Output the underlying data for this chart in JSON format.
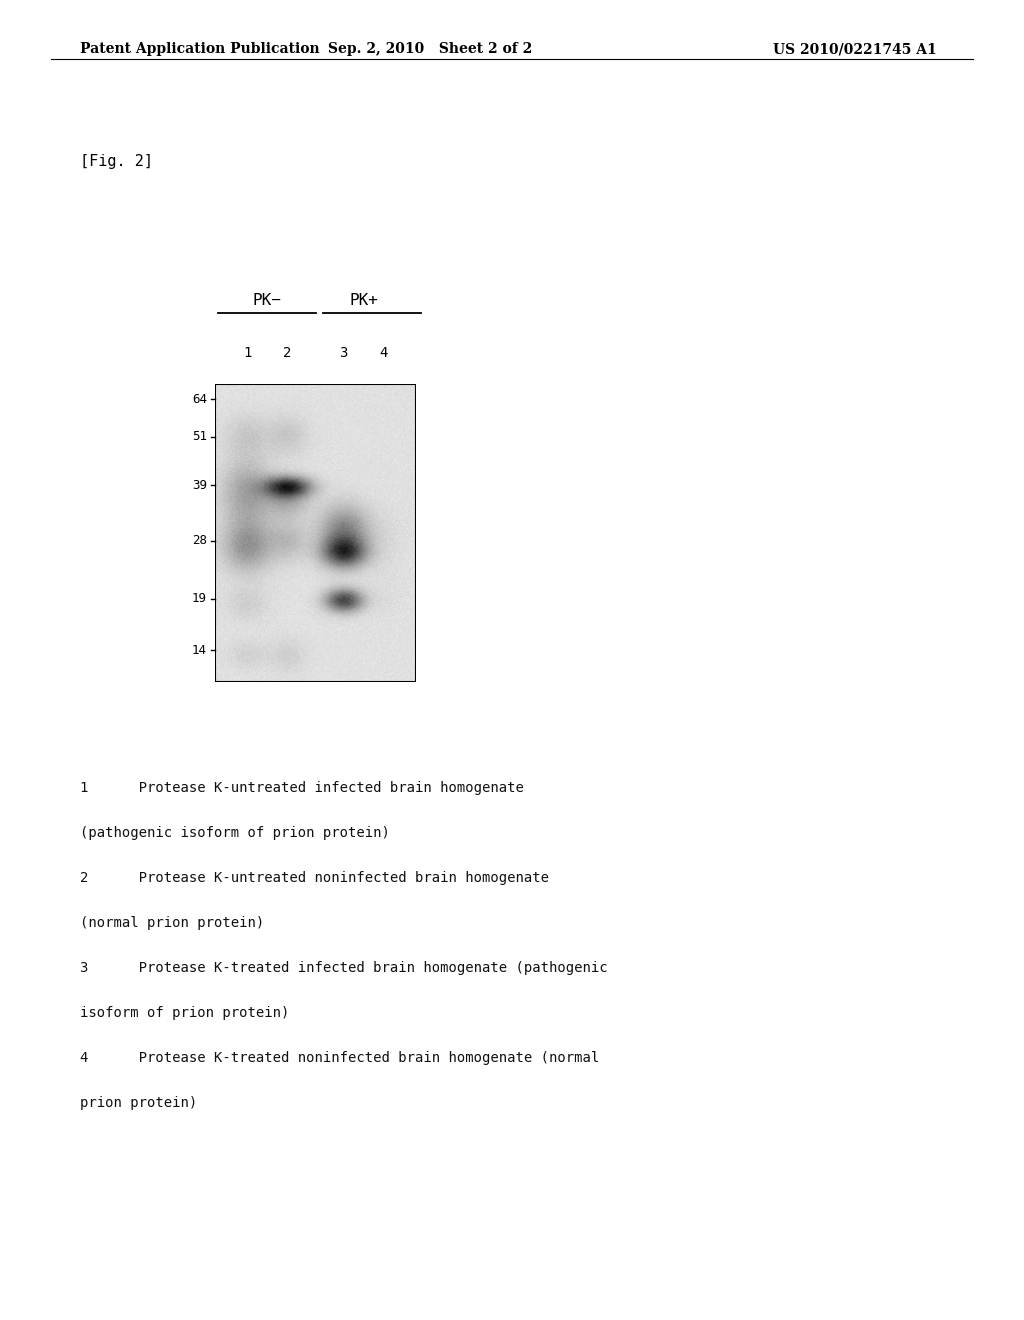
{
  "background_color": "#ffffff",
  "page_header_left": "Patent Application Publication",
  "page_header_center": "Sep. 2, 2010   Sheet 2 of 2",
  "page_header_right": "US 2010/0221745 A1",
  "fig_label": "[Fig. 2]",
  "pk_minus_label": "PK−",
  "pk_plus_label": "PK+",
  "lane_labels": [
    "1",
    "2",
    "3",
    "4"
  ],
  "mw_markers": [
    "64",
    "51",
    "39",
    "28",
    "19",
    "14"
  ],
  "legend_lines": [
    [
      "1",
      "      Protease K-untreated infected brain homogenate"
    ],
    [
      "",
      "(pathogenic isoform of prion protein)"
    ],
    [
      "2",
      "      Protease K-untreated noninfected brain homogenate"
    ],
    [
      "",
      "(normal prion protein)"
    ],
    [
      "3",
      "      Protease K-treated infected brain homogenate (pathogenic"
    ],
    [
      "",
      "isoform of prion protein)"
    ],
    [
      "4",
      "      Protease K-treated noninfected brain homogenate (normal"
    ],
    [
      "",
      "prion protein)"
    ]
  ]
}
